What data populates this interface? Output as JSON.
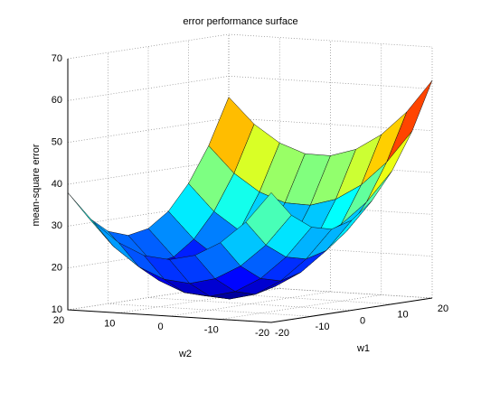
{
  "chart_data": {
    "type": "surface",
    "title": "error performance surface",
    "xlabel": "w1",
    "ylabel": "w2",
    "zlabel": "mean-square error",
    "x": [
      -20,
      -15,
      -10,
      -5,
      0,
      5,
      10,
      15,
      20
    ],
    "y": [
      -20,
      -15,
      -10,
      -5,
      0,
      5,
      10,
      15,
      20
    ],
    "z": [
      [
        41.0,
        34.9,
        31.3,
        30.1,
        31.5,
        35.4,
        41.8,
        50.6,
        62.0
      ],
      [
        33.6,
        27.4,
        23.8,
        22.6,
        23.9,
        27.7,
        34.0,
        42.8,
        54.1
      ],
      [
        28.3,
        22.0,
        18.3,
        17.0,
        18.3,
        22.0,
        28.3,
        37.0,
        48.3
      ],
      [
        24.9,
        18.6,
        14.8,
        13.4,
        14.6,
        18.3,
        24.5,
        33.2,
        44.4
      ],
      [
        23.5,
        17.1,
        13.3,
        11.9,
        13.0,
        16.6,
        22.8,
        31.4,
        42.5
      ],
      [
        24.1,
        17.7,
        13.8,
        12.3,
        13.4,
        16.9,
        23.0,
        31.6,
        42.6
      ],
      [
        26.8,
        20.3,
        16.3,
        14.8,
        15.8,
        19.3,
        25.3,
        33.8,
        44.8
      ],
      [
        31.4,
        24.8,
        20.8,
        19.2,
        20.1,
        23.6,
        29.5,
        37.9,
        48.9
      ],
      [
        38.0,
        31.4,
        27.3,
        25.6,
        26.5,
        29.9,
        35.8,
        44.1,
        55.0
      ]
    ],
    "xlim": [
      -20,
      20
    ],
    "ylim": [
      -20,
      20
    ],
    "zlim": [
      10,
      70
    ],
    "xticks": [
      -20,
      -10,
      0,
      10,
      20
    ],
    "yticks": [
      -20,
      -10,
      0,
      10,
      20
    ],
    "zticks": [
      10,
      20,
      30,
      40,
      50,
      60,
      70
    ],
    "grid": true,
    "colormap": "jet"
  }
}
